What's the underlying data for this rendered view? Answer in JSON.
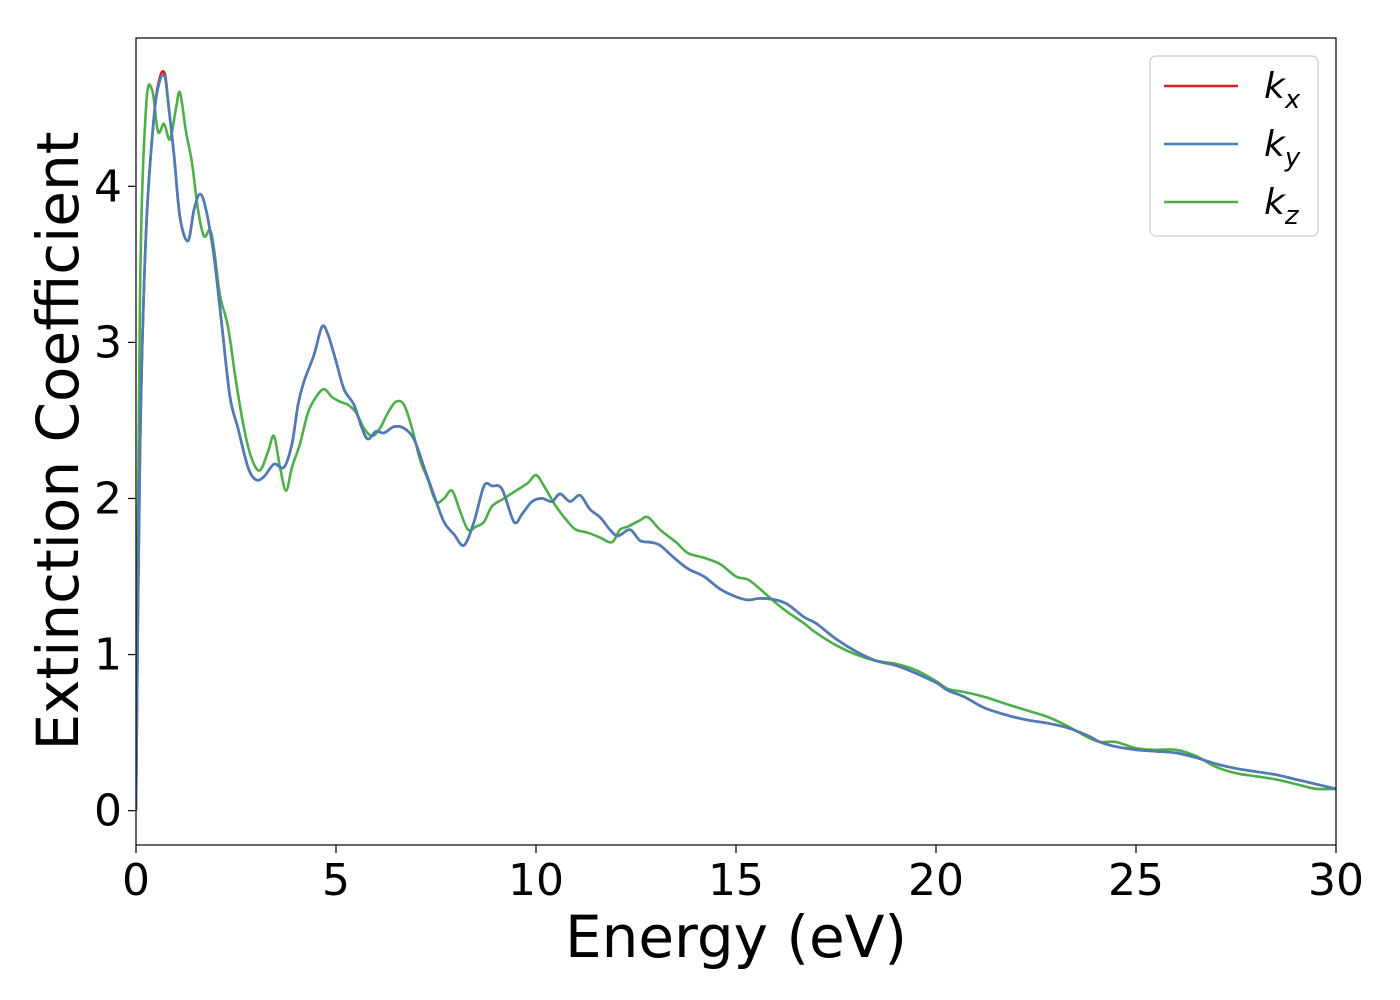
{
  "chart_data": {
    "type": "line",
    "xlabel": "Energy (eV)",
    "ylabel": "Extinction Coefficient",
    "xlim": [
      0,
      30
    ],
    "ylim": [
      -0.22,
      4.95
    ],
    "xticks": [
      0,
      5,
      10,
      15,
      20,
      25,
      30
    ],
    "yticks": [
      0,
      1,
      2,
      3,
      4
    ],
    "grid": false,
    "legend_position": "top-right",
    "series": [
      {
        "name": "k_x",
        "legend_base": "k",
        "legend_sub": "x",
        "color": "#e41a1c",
        "x": [
          0,
          0.1,
          0.25,
          0.45,
          0.6,
          0.72,
          0.8,
          0.95,
          1.1,
          1.3,
          1.45,
          1.6,
          1.75,
          1.95,
          2.15,
          2.35,
          2.55,
          2.8,
          3.0,
          3.2,
          3.45,
          3.7,
          3.9,
          4.05,
          4.2,
          4.45,
          4.65,
          4.8,
          5.0,
          5.2,
          5.45,
          5.65,
          5.8,
          6.0,
          6.2,
          6.45,
          6.7,
          6.95,
          7.2,
          7.45,
          7.7,
          7.95,
          8.2,
          8.45,
          8.7,
          8.9,
          9.15,
          9.45,
          9.65,
          9.9,
          10.15,
          10.4,
          10.6,
          10.85,
          11.1,
          11.35,
          11.6,
          11.85,
          12.05,
          12.35,
          12.6,
          12.85,
          13.1,
          13.45,
          13.8,
          14.2,
          14.6,
          15.0,
          15.3,
          15.6,
          16.0,
          16.3,
          16.7,
          17.0,
          17.5,
          18.0,
          18.5,
          19.0,
          19.5,
          20.0,
          20.3,
          20.7,
          21.2,
          21.8,
          22.3,
          22.8,
          23.3,
          23.8,
          24.1,
          24.5,
          25.0,
          25.5,
          26.0,
          26.5,
          27.0,
          27.5,
          28.0,
          28.5,
          29.0,
          29.5,
          30.0
        ],
        "values": [
          0.0,
          2.3,
          3.7,
          4.45,
          4.7,
          4.72,
          4.55,
          4.2,
          3.8,
          3.65,
          3.85,
          3.95,
          3.85,
          3.55,
          3.1,
          2.65,
          2.45,
          2.2,
          2.12,
          2.14,
          2.22,
          2.2,
          2.35,
          2.6,
          2.75,
          2.92,
          3.1,
          3.05,
          2.88,
          2.7,
          2.6,
          2.45,
          2.38,
          2.43,
          2.42,
          2.46,
          2.45,
          2.38,
          2.2,
          2.02,
          1.85,
          1.77,
          1.7,
          1.85,
          2.08,
          2.08,
          2.06,
          1.85,
          1.9,
          1.98,
          2.0,
          1.98,
          2.03,
          1.98,
          2.02,
          1.93,
          1.88,
          1.8,
          1.76,
          1.8,
          1.73,
          1.72,
          1.7,
          1.62,
          1.55,
          1.5,
          1.42,
          1.37,
          1.35,
          1.36,
          1.35,
          1.32,
          1.24,
          1.2,
          1.1,
          1.02,
          0.96,
          0.93,
          0.88,
          0.82,
          0.77,
          0.73,
          0.66,
          0.61,
          0.58,
          0.56,
          0.53,
          0.48,
          0.44,
          0.41,
          0.39,
          0.38,
          0.37,
          0.34,
          0.3,
          0.27,
          0.25,
          0.23,
          0.2,
          0.17,
          0.14
        ]
      },
      {
        "name": "k_y",
        "legend_base": "k",
        "legend_sub": "y",
        "color": "#4a7eb8",
        "x": [
          0,
          0.1,
          0.25,
          0.45,
          0.6,
          0.72,
          0.8,
          0.95,
          1.1,
          1.3,
          1.45,
          1.6,
          1.75,
          1.95,
          2.15,
          2.35,
          2.55,
          2.8,
          3.0,
          3.2,
          3.45,
          3.7,
          3.9,
          4.05,
          4.2,
          4.45,
          4.65,
          4.8,
          5.0,
          5.2,
          5.45,
          5.65,
          5.8,
          6.0,
          6.2,
          6.45,
          6.7,
          6.95,
          7.2,
          7.45,
          7.7,
          7.95,
          8.2,
          8.45,
          8.7,
          8.9,
          9.15,
          9.45,
          9.65,
          9.9,
          10.15,
          10.4,
          10.6,
          10.85,
          11.1,
          11.35,
          11.6,
          11.85,
          12.05,
          12.35,
          12.6,
          12.85,
          13.1,
          13.45,
          13.8,
          14.2,
          14.6,
          15.0,
          15.3,
          15.6,
          16.0,
          16.3,
          16.7,
          17.0,
          17.5,
          18.0,
          18.5,
          19.0,
          19.5,
          20.0,
          20.3,
          20.7,
          21.2,
          21.8,
          22.3,
          22.8,
          23.3,
          23.8,
          24.1,
          24.5,
          25.0,
          25.5,
          26.0,
          26.5,
          27.0,
          27.5,
          28.0,
          28.5,
          29.0,
          29.5,
          30.0
        ],
        "values": [
          0.0,
          2.3,
          3.7,
          4.44,
          4.68,
          4.7,
          4.55,
          4.2,
          3.8,
          3.65,
          3.85,
          3.95,
          3.85,
          3.55,
          3.1,
          2.65,
          2.45,
          2.2,
          2.12,
          2.14,
          2.22,
          2.2,
          2.35,
          2.6,
          2.75,
          2.92,
          3.1,
          3.05,
          2.88,
          2.7,
          2.6,
          2.45,
          2.38,
          2.43,
          2.42,
          2.46,
          2.45,
          2.38,
          2.2,
          2.02,
          1.85,
          1.77,
          1.7,
          1.85,
          2.08,
          2.08,
          2.06,
          1.85,
          1.9,
          1.98,
          2.0,
          1.98,
          2.03,
          1.98,
          2.02,
          1.93,
          1.88,
          1.8,
          1.76,
          1.8,
          1.73,
          1.72,
          1.7,
          1.62,
          1.55,
          1.5,
          1.42,
          1.37,
          1.35,
          1.36,
          1.35,
          1.32,
          1.24,
          1.2,
          1.1,
          1.02,
          0.96,
          0.93,
          0.88,
          0.82,
          0.77,
          0.73,
          0.66,
          0.61,
          0.58,
          0.56,
          0.53,
          0.48,
          0.44,
          0.41,
          0.39,
          0.38,
          0.37,
          0.34,
          0.3,
          0.27,
          0.25,
          0.23,
          0.2,
          0.17,
          0.14
        ]
      },
      {
        "name": "k_z",
        "legend_base": "k",
        "legend_sub": "z",
        "color": "#4daf4a",
        "x": [
          0,
          0.1,
          0.25,
          0.4,
          0.55,
          0.7,
          0.85,
          1.0,
          1.1,
          1.25,
          1.4,
          1.55,
          1.7,
          1.85,
          1.95,
          2.1,
          2.3,
          2.5,
          2.7,
          2.9,
          3.1,
          3.3,
          3.45,
          3.6,
          3.75,
          3.9,
          4.1,
          4.3,
          4.5,
          4.7,
          4.9,
          5.1,
          5.3,
          5.5,
          5.7,
          5.9,
          6.1,
          6.3,
          6.5,
          6.7,
          6.9,
          7.1,
          7.3,
          7.5,
          7.7,
          7.9,
          8.1,
          8.3,
          8.5,
          8.7,
          8.9,
          9.2,
          9.5,
          9.8,
          10.0,
          10.2,
          10.5,
          10.8,
          11.0,
          11.3,
          11.6,
          11.9,
          12.1,
          12.3,
          12.6,
          12.8,
          13.1,
          13.5,
          13.8,
          14.2,
          14.6,
          15.0,
          15.3,
          15.6,
          16.0,
          16.3,
          16.7,
          17.0,
          17.5,
          18.0,
          18.5,
          19.0,
          19.5,
          20.0,
          20.3,
          20.7,
          21.2,
          21.8,
          22.3,
          22.8,
          23.3,
          23.8,
          24.1,
          24.5,
          25.0,
          25.5,
          26.0,
          26.5,
          27.0,
          27.5,
          28.0,
          28.5,
          29.0,
          29.5,
          30.0
        ],
        "values": [
          0.0,
          3.3,
          4.5,
          4.62,
          4.35,
          4.4,
          4.3,
          4.5,
          4.6,
          4.35,
          4.15,
          3.85,
          3.68,
          3.72,
          3.6,
          3.3,
          3.1,
          2.75,
          2.45,
          2.25,
          2.18,
          2.3,
          2.4,
          2.2,
          2.05,
          2.2,
          2.35,
          2.55,
          2.65,
          2.7,
          2.65,
          2.62,
          2.6,
          2.55,
          2.45,
          2.4,
          2.45,
          2.55,
          2.62,
          2.6,
          2.45,
          2.25,
          2.12,
          1.98,
          2.0,
          2.05,
          1.92,
          1.8,
          1.82,
          1.85,
          1.95,
          2.0,
          2.05,
          2.1,
          2.15,
          2.08,
          1.95,
          1.85,
          1.8,
          1.78,
          1.75,
          1.72,
          1.8,
          1.82,
          1.86,
          1.88,
          1.8,
          1.72,
          1.65,
          1.62,
          1.58,
          1.5,
          1.48,
          1.42,
          1.33,
          1.27,
          1.2,
          1.14,
          1.06,
          1.0,
          0.96,
          0.94,
          0.9,
          0.83,
          0.78,
          0.76,
          0.73,
          0.68,
          0.64,
          0.6,
          0.54,
          0.47,
          0.44,
          0.44,
          0.4,
          0.39,
          0.39,
          0.35,
          0.28,
          0.24,
          0.22,
          0.2,
          0.17,
          0.14,
          0.14
        ]
      }
    ]
  }
}
